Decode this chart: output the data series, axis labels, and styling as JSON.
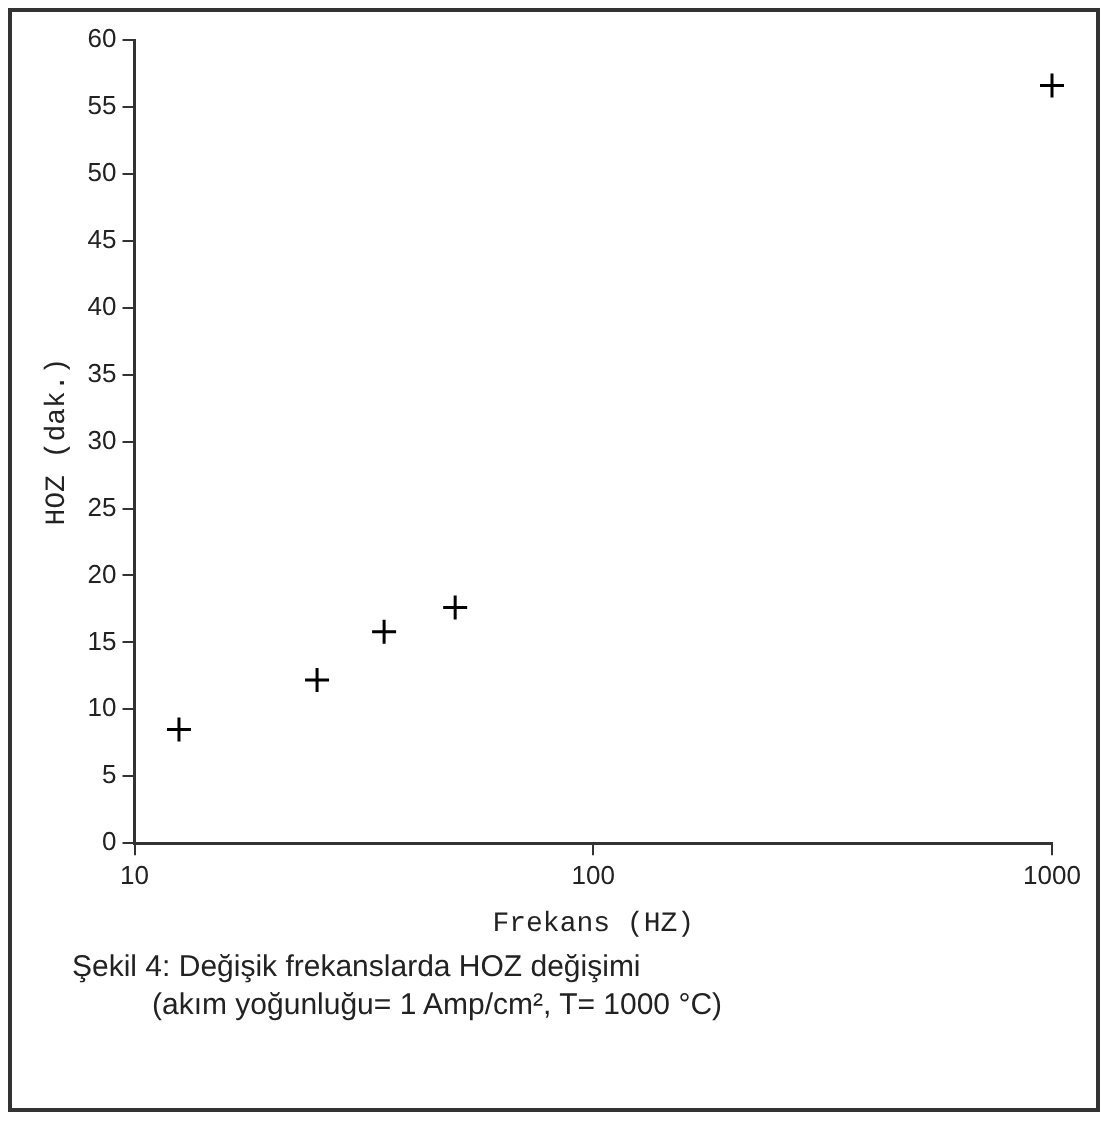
{
  "chart_data": {
    "type": "scatter",
    "title": "Şekil 4: Değişik frekanslarda HOZ değişimi",
    "subtitle": "(akım yoğunluğu= 1 Amp/cm², T= 1000 °C)",
    "xlabel": "Frekans (HZ)",
    "ylabel": "HOZ (dak.)",
    "x": [
      12.5,
      25,
      35,
      50,
      1000
    ],
    "series": [
      {
        "color": "#000000",
        "values": [
          8.5,
          12.2,
          15.8,
          17.6,
          56.6
        ]
      }
    ],
    "log": "x",
    "xlim": [
      10,
      1000
    ],
    "xticks": [
      10,
      100,
      1000
    ],
    "ylim": [
      0,
      60
    ],
    "yticks": [
      0,
      5,
      10,
      15,
      20,
      25,
      30,
      35,
      40,
      45,
      50,
      55,
      60
    ],
    "grid": false,
    "legend": false,
    "marker": "cross"
  }
}
